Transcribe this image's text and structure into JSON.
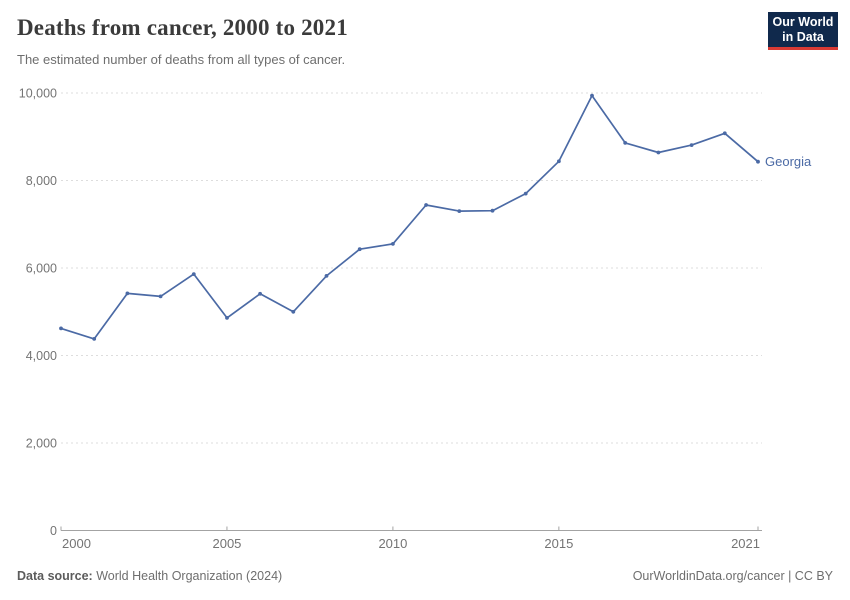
{
  "header": {
    "title": "Deaths from cancer, 2000 to 2021",
    "subtitle": "The estimated number of deaths from all types of cancer."
  },
  "logo": {
    "line1": "Our World",
    "line2": "in Data",
    "bg_color": "#10294c",
    "accent_color": "#d93a34"
  },
  "chart_data": {
    "type": "line",
    "title": "Deaths from cancer, 2000 to 2021",
    "xlabel": "",
    "ylabel": "",
    "x": [
      2000,
      2001,
      2002,
      2003,
      2004,
      2005,
      2006,
      2007,
      2008,
      2009,
      2010,
      2011,
      2012,
      2013,
      2014,
      2015,
      2016,
      2017,
      2018,
      2019,
      2020,
      2021
    ],
    "series": [
      {
        "name": "Georgia",
        "color": "#4b6aa5",
        "values": [
          4620,
          4380,
          5420,
          5350,
          5860,
          4860,
          5410,
          5000,
          5820,
          6430,
          6550,
          7440,
          7300,
          7310,
          7700,
          8440,
          9940,
          8860,
          8640,
          8810,
          9080,
          8430
        ]
      }
    ],
    "ylim": [
      0,
      10000
    ],
    "yticks": [
      0,
      2000,
      4000,
      6000,
      8000,
      10000
    ],
    "ytick_labels": [
      "0",
      "2,000",
      "4,000",
      "6,000",
      "8,000",
      "10,000"
    ],
    "xticks": [
      2000,
      2005,
      2010,
      2015,
      2021
    ],
    "xtick_labels": [
      "2000",
      "2005",
      "2010",
      "2015",
      "2021"
    ],
    "grid": "horizontal-dashed",
    "legend_position": "end-of-line",
    "gridline_color": "#dddddd",
    "axis_color": "#a3a3a3",
    "tick_label_color": "#747474"
  },
  "footer": {
    "source_label": "Data source:",
    "source_text": " World Health Organization (2024)",
    "attribution": "OurWorldinData.org/cancer | CC BY"
  }
}
